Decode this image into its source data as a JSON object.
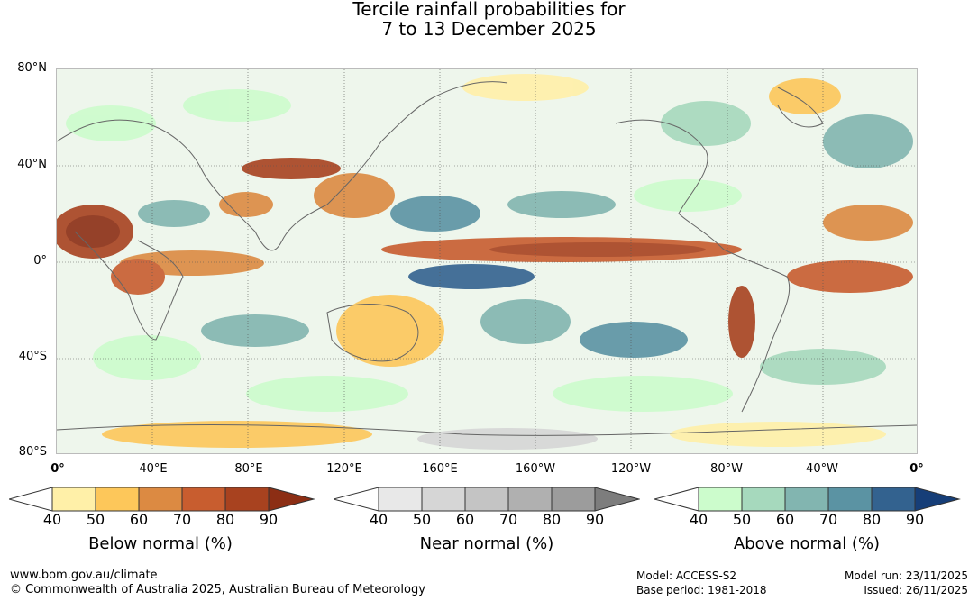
{
  "title": {
    "line1": "Tercile rainfall probabilities for",
    "line2": "7 to 13 December 2025"
  },
  "map": {
    "lat_labels": [
      "80°N",
      "40°N",
      "0°",
      "40°S",
      "80°S"
    ],
    "lon_labels": [
      "0°",
      "40°E",
      "80°E",
      "120°E",
      "160°E",
      "160°W",
      "120°W",
      "80°W",
      "40°W",
      "0°"
    ]
  },
  "legends": [
    {
      "title": "Below normal (%)",
      "ticks": [
        "40",
        "50",
        "60",
        "70",
        "80",
        "90"
      ],
      "colors": [
        "#ffffff",
        "#fff0a8",
        "#fdc75a",
        "#dc8a42",
        "#c85d2f",
        "#a8421f",
        "#8c2e14"
      ]
    },
    {
      "title": "Near normal (%)",
      "ticks": [
        "40",
        "50",
        "60",
        "70",
        "80",
        "90"
      ],
      "colors": [
        "#ffffff",
        "#e8e8e8",
        "#d6d6d6",
        "#c4c4c4",
        "#b0b0b0",
        "#9c9c9c",
        "#7d7d7d"
      ]
    },
    {
      "title": "Above normal (%)",
      "ticks": [
        "40",
        "50",
        "60",
        "70",
        "80",
        "90"
      ],
      "colors": [
        "#ffffff",
        "#ccfccc",
        "#a6d9bd",
        "#82b5b0",
        "#5b93a3",
        "#33628f",
        "#163e78"
      ]
    }
  ],
  "footer": {
    "url": "www.bom.gov.au/climate",
    "copyright": "© Commonwealth of Australia 2025, Australian Bureau of Meteorology",
    "model": "Model: ACCESS-S2",
    "base_period": "Base period: 1981-2018",
    "model_run": "Model run: 23/11/2025",
    "issued": "Issued: 26/11/2025"
  }
}
